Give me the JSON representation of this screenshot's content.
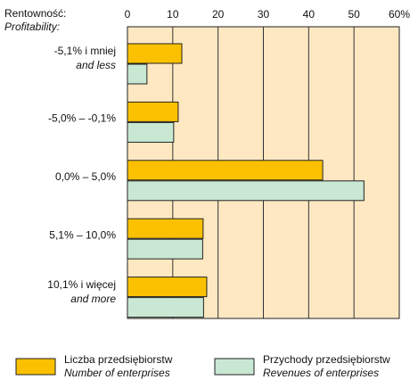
{
  "chart_data": {
    "type": "bar",
    "orientation": "horizontal",
    "axis_label": [
      "Rentowność:",
      "Profitability:"
    ],
    "categories": [
      [
        "-5,1% i mniej",
        "and less"
      ],
      [
        "-5,0% – -0,1%"
      ],
      [
        "0,0% – 5,0%"
      ],
      [
        "5,1% – 10,0%"
      ],
      [
        "10,1% i więcej",
        "and more"
      ]
    ],
    "series": [
      {
        "name": [
          "Liczba przedsiębiorstw",
          "Number of enterprises"
        ],
        "color": "#fbc100",
        "values": [
          12,
          11.2,
          43.1,
          16.7,
          17.5
        ]
      },
      {
        "name": [
          "Przychody przedsiębiorstw",
          "Revenues of enterprises"
        ],
        "color": "#c8e8d4",
        "values": [
          4.3,
          10.2,
          52.2,
          16.6,
          16.8
        ]
      }
    ],
    "xlim": [
      0,
      60
    ],
    "xticks": [
      0,
      10,
      20,
      30,
      40,
      50,
      {
        "value": 60,
        "label": "60%"
      }
    ],
    "grid": true,
    "background": "#fde8c2"
  }
}
